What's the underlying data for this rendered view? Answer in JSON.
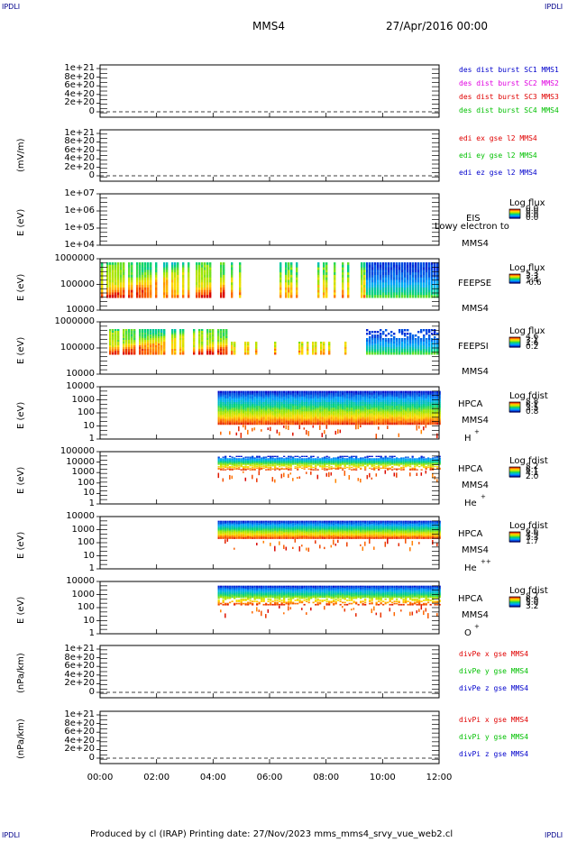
{
  "corners": {
    "tl": "IPDLI",
    "tr": "IPDLI",
    "bl": "IPDLI",
    "br": "IPDLI"
  },
  "header": {
    "spacecraft": "MMS4",
    "datetime": "27/Apr/2016 00:00"
  },
  "footer": {
    "text": "Produced by cl (IRAP)   Printing date: 27/Nov/2023   mms_mms4_srvy_vue_web2.cl"
  },
  "colors": {
    "red": "#e00000",
    "magenta": "#e000e0",
    "green": "#00c000",
    "blue": "#0000cc"
  },
  "chart_data": [
    {
      "type": "line",
      "ylabel": "",
      "yticks": [
        "1e+21",
        "8e+20",
        "6e+20",
        "4e+20",
        "2e+20",
        "0"
      ],
      "legend": [
        {
          "text": "des dist burst SC1 MMS1",
          "color": "#0000cc"
        },
        {
          "text": "des dist burst SC2 MMS2",
          "color": "#e000e0"
        },
        {
          "text": "des dist burst SC3 MMS3",
          "color": "#e00000"
        },
        {
          "text": "des dist burst SC4 MMS4",
          "color": "#00c000"
        }
      ],
      "zero_dashed": true
    },
    {
      "type": "line",
      "ylabel": "(mV/m)",
      "yticks": [
        "1e+21",
        "8e+20",
        "6e+20",
        "4e+20",
        "2e+20",
        "0"
      ],
      "legend": [
        {
          "text": "edi ex gse l2 MMS4",
          "color": "#e00000"
        },
        {
          "text": "edi ey gse l2 MMS4",
          "color": "#00c000"
        },
        {
          "text": "edi ez gse l2 MMS4",
          "color": "#0000cc"
        }
      ],
      "zero_dashed": true
    },
    {
      "type": "heatmap",
      "ylabel": "E (eV)",
      "yticks": [
        "1e+07",
        "1e+06",
        "1e+05",
        "1e+04"
      ],
      "instrument": [
        "EIS",
        "MMS4"
      ],
      "overlay_text": "Lowy electron to",
      "colorbar": {
        "title": "Log flux",
        "values": [
          "0.0",
          "0.0",
          "0.0",
          "0.0"
        ]
      }
    },
    {
      "type": "heatmap",
      "ylabel": "E (eV)",
      "yticks": [
        "1000000",
        "100000",
        "10000"
      ],
      "instrument": [
        "FEEPSE",
        "MMS4"
      ],
      "colorbar": {
        "title": "Log flux",
        "values": [
          "5.3",
          "3.3",
          "1.4",
          "-0.6"
        ]
      }
    },
    {
      "type": "heatmap",
      "ylabel": "E (eV)",
      "yticks": [
        "1000000",
        "100000",
        "10000"
      ],
      "instrument": [
        "FEEPSI",
        "MMS4"
      ],
      "colorbar": {
        "title": "Log flux",
        "values": [
          "4.6",
          "3.1",
          "1.6",
          "0.2"
        ]
      }
    },
    {
      "type": "heatmap",
      "ylabel": "E (eV)",
      "yticks": [
        "10000",
        "1000",
        "100",
        "10",
        "1"
      ],
      "instrument": [
        "HPCA",
        "MMS4",
        "H",
        "+"
      ],
      "colorbar": {
        "title": "Log fdist",
        "values": [
          "8.8",
          "6.1",
          "3.5",
          "0.8"
        ]
      }
    },
    {
      "type": "heatmap",
      "ylabel": "E (eV)",
      "yticks": [
        "100000",
        "10000",
        "1000",
        "100",
        "10",
        "1"
      ],
      "instrument": [
        "HPCA",
        "MMS4",
        "He",
        "+"
      ],
      "colorbar": {
        "title": "Log fdist",
        "values": [
          "8.2",
          "6.1",
          "4.1",
          "2.0"
        ]
      }
    },
    {
      "type": "heatmap",
      "ylabel": "E (eV)",
      "yticks": [
        "10000",
        "1000",
        "100",
        "10",
        "1"
      ],
      "instrument": [
        "HPCA",
        "MMS4",
        "He",
        "++"
      ],
      "colorbar": {
        "title": "Log fdist",
        "values": [
          "6.6",
          "4.9",
          "3.3",
          "1.7"
        ]
      }
    },
    {
      "type": "heatmap",
      "ylabel": "E (eV)",
      "yticks": [
        "10000",
        "1000",
        "100",
        "10",
        "1"
      ],
      "instrument": [
        "HPCA",
        "MMS4",
        "O",
        "+"
      ],
      "colorbar": {
        "title": "Log fdist",
        "values": [
          "8.7",
          "6.9",
          "5.0",
          "3.2"
        ]
      }
    },
    {
      "type": "line",
      "ylabel": "(nPa/km)",
      "yticks": [
        "1e+21",
        "8e+20",
        "6e+20",
        "4e+20",
        "2e+20",
        "0"
      ],
      "legend": [
        {
          "text": "divPe x gse MMS4",
          "color": "#e00000"
        },
        {
          "text": "divPe y gse MMS4",
          "color": "#00c000"
        },
        {
          "text": "divPe z gse MMS4",
          "color": "#0000cc"
        }
      ],
      "zero_dashed": true
    },
    {
      "type": "line",
      "ylabel": "(nPa/km)",
      "yticks": [
        "1e+21",
        "8e+20",
        "6e+20",
        "4e+20",
        "2e+20",
        "0"
      ],
      "legend": [
        {
          "text": "divPi x gse MMS4",
          "color": "#e00000"
        },
        {
          "text": "divPi y gse MMS4",
          "color": "#00c000"
        },
        {
          "text": "divPi z gse MMS4",
          "color": "#0000cc"
        }
      ],
      "zero_dashed": true
    }
  ],
  "xaxis": {
    "ticks": [
      "00:00",
      "02:00",
      "04:00",
      "06:00",
      "08:00",
      "10:00",
      "12:00"
    ],
    "range": [
      "00:00",
      "12:00"
    ]
  },
  "data_coverage": {
    "feeps_start": "00:00",
    "feeps_dense_until": "04:30",
    "feeps_sparse_until": "09:20",
    "hpca_start": "04:10",
    "hpca_end": "12:00"
  }
}
